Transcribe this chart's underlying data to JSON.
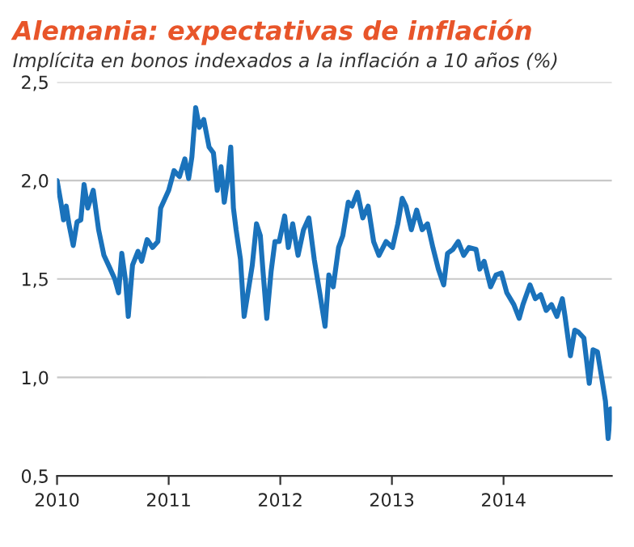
{
  "chart_data": {
    "type": "line",
    "title": "Alemania: expectativas de inflación",
    "subtitle": "Implícita en bonos indexados a la inflación a 10 años (%)",
    "xlim": [
      2010,
      2014.97
    ],
    "xticks": [
      2010,
      2011,
      2012,
      2013,
      2014
    ],
    "ylim": [
      0.5,
      2.5
    ],
    "yticks": [
      {
        "value": 0.5,
        "label": "0,5"
      },
      {
        "value": 1.0,
        "label": "1,0"
      },
      {
        "value": 1.5,
        "label": "1,5"
      },
      {
        "value": 2.0,
        "label": "2,0"
      },
      {
        "value": 2.5,
        "label": "2,5"
      }
    ],
    "grid": "y",
    "legend": false,
    "marker": "none",
    "line_style": "solid",
    "series": [
      {
        "color": "#1a72bb",
        "x": [
          2010.0,
          2010.034,
          2010.058,
          2010.082,
          2010.106,
          2010.145,
          2010.179,
          2010.213,
          2010.242,
          2010.275,
          2010.324,
          2010.372,
          2010.42,
          2010.469,
          2010.517,
          2010.551,
          2010.58,
          2010.614,
          2010.638,
          2010.676,
          2010.725,
          2010.758,
          2010.807,
          2010.855,
          2010.903,
          2010.928,
          2011.0,
          2011.048,
          2011.097,
          2011.145,
          2011.179,
          2011.208,
          2011.242,
          2011.275,
          2011.314,
          2011.362,
          2011.401,
          2011.435,
          2011.469,
          2011.498,
          2011.531,
          2011.556,
          2011.58,
          2011.604,
          2011.643,
          2011.676,
          2011.71,
          2011.749,
          2011.787,
          2011.821,
          2011.845,
          2011.879,
          2011.918,
          2011.952,
          2011.99,
          2012.039,
          2012.072,
          2012.111,
          2012.159,
          2012.208,
          2012.256,
          2012.304,
          2012.353,
          2012.401,
          2012.435,
          2012.474,
          2012.522,
          2012.56,
          2012.609,
          2012.643,
          2012.691,
          2012.739,
          2012.787,
          2012.836,
          2012.884,
          2012.947,
          2013.005,
          2013.053,
          2013.092,
          2013.126,
          2013.174,
          2013.222,
          2013.271,
          2013.319,
          2013.367,
          2013.416,
          2013.464,
          2013.498,
          2013.546,
          2013.594,
          2013.643,
          2013.691,
          2013.754,
          2013.787,
          2013.826,
          2013.884,
          2013.932,
          2013.981,
          2014.029,
          2014.092,
          2014.14,
          2014.174,
          2014.237,
          2014.285,
          2014.333,
          2014.382,
          2014.43,
          2014.478,
          2014.527,
          2014.551,
          2014.599,
          2014.638,
          2014.671,
          2014.72,
          2014.768,
          2014.802,
          2014.841,
          2014.879,
          2014.913,
          2014.937,
          2014.96
        ],
        "values": [
          2.0,
          1.89,
          1.8,
          1.87,
          1.78,
          1.67,
          1.79,
          1.8,
          1.98,
          1.86,
          1.95,
          1.75,
          1.62,
          1.56,
          1.5,
          1.43,
          1.63,
          1.49,
          1.31,
          1.57,
          1.64,
          1.59,
          1.7,
          1.66,
          1.69,
          1.86,
          1.95,
          2.05,
          2.02,
          2.11,
          2.01,
          2.12,
          2.37,
          2.27,
          2.31,
          2.17,
          2.14,
          1.95,
          2.07,
          1.89,
          2.02,
          2.17,
          1.86,
          1.75,
          1.6,
          1.31,
          1.43,
          1.57,
          1.78,
          1.72,
          1.54,
          1.3,
          1.54,
          1.69,
          1.69,
          1.82,
          1.66,
          1.78,
          1.62,
          1.75,
          1.81,
          1.6,
          1.43,
          1.26,
          1.52,
          1.46,
          1.66,
          1.72,
          1.89,
          1.87,
          1.94,
          1.81,
          1.87,
          1.69,
          1.62,
          1.69,
          1.66,
          1.78,
          1.91,
          1.87,
          1.75,
          1.85,
          1.75,
          1.78,
          1.66,
          1.55,
          1.47,
          1.63,
          1.65,
          1.69,
          1.62,
          1.66,
          1.65,
          1.55,
          1.59,
          1.46,
          1.52,
          1.53,
          1.43,
          1.37,
          1.3,
          1.37,
          1.47,
          1.4,
          1.42,
          1.34,
          1.37,
          1.31,
          1.4,
          1.31,
          1.11,
          1.24,
          1.23,
          1.2,
          0.97,
          1.14,
          1.13,
          1.0,
          0.88,
          0.69,
          0.84
        ]
      }
    ]
  }
}
